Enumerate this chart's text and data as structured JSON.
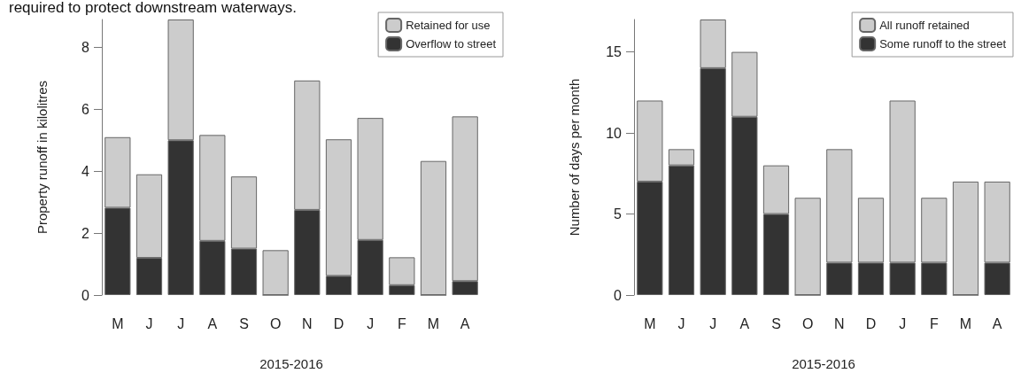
{
  "chart_data": [
    {
      "type": "bar",
      "stacked": true,
      "annotations": [
        "required to protect downstream waterways."
      ],
      "xlabel": "2015-2016",
      "ylabel": "Property runoff in kilolitres",
      "categories": [
        "M",
        "J",
        "J",
        "A",
        "S",
        "O",
        "N",
        "D",
        "J",
        "F",
        "M",
        "A"
      ],
      "series": [
        {
          "name": "Overflow to street",
          "color": "#333333",
          "values": [
            2.82,
            1.2,
            5.0,
            1.75,
            1.5,
            0,
            2.75,
            0.62,
            1.78,
            0.32,
            0,
            0.45
          ]
        },
        {
          "name": "Retained for use",
          "color": "#cccccc",
          "values": [
            2.28,
            2.7,
            3.9,
            3.42,
            2.33,
            1.45,
            4.18,
            4.41,
            3.94,
            0.9,
            4.33,
            5.32
          ]
        }
      ],
      "ylim": [
        0,
        8.9
      ],
      "yticks": [
        0,
        2,
        4,
        6,
        8
      ],
      "grid": false,
      "legend": "top right"
    },
    {
      "type": "bar",
      "stacked": true,
      "xlabel": "2015-2016",
      "ylabel": "Number of days per month",
      "categories": [
        "M",
        "J",
        "J",
        "A",
        "S",
        "O",
        "N",
        "D",
        "J",
        "F",
        "M",
        "A"
      ],
      "series": [
        {
          "name": "Some runoff to the street",
          "color": "#333333",
          "values": [
            7,
            8,
            14,
            11,
            5,
            0,
            2,
            2,
            2,
            2,
            0,
            2
          ]
        },
        {
          "name": "All runoff retained",
          "color": "#cccccc",
          "values": [
            5,
            1,
            3,
            4,
            3,
            6,
            7,
            4,
            10,
            4,
            7,
            5
          ]
        }
      ],
      "ylim": [
        0,
        17
      ],
      "yticks": [
        0,
        5,
        10,
        15
      ],
      "grid": false,
      "legend": "top right"
    }
  ]
}
